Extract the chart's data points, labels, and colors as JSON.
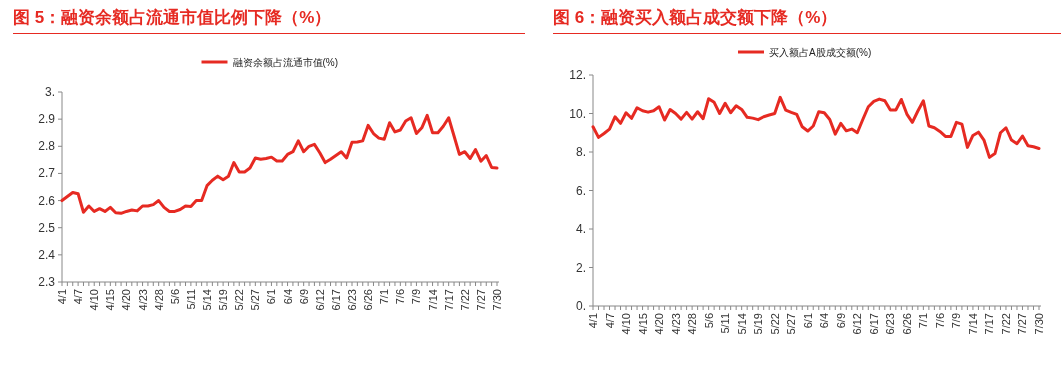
{
  "chart_data": [
    {
      "type": "line",
      "title": "图 5：融资余额占流通市值比例下降（%）",
      "legend": "top",
      "categories": [
        "4/1",
        null,
        null,
        "4/7",
        null,
        null,
        "4/10",
        null,
        null,
        "4/15",
        null,
        null,
        "4/20",
        null,
        null,
        "4/23",
        null,
        null,
        "4/28",
        null,
        null,
        "5/6",
        null,
        null,
        "5/11",
        null,
        null,
        "5/14",
        null,
        null,
        "5/19",
        null,
        null,
        "5/22",
        null,
        null,
        "5/27",
        null,
        null,
        "6/1",
        null,
        null,
        "6/4",
        null,
        null,
        "6/9",
        null,
        null,
        "6/12",
        null,
        null,
        "6/17",
        null,
        null,
        "6/23",
        null,
        null,
        "6/26",
        null,
        null,
        "7/1",
        null,
        null,
        "7/6",
        null,
        null,
        "7/9",
        null,
        null,
        "7/14",
        null,
        null,
        "7/17",
        null,
        null,
        "7/22",
        null,
        null,
        "7/27",
        null,
        null,
        "7/30"
      ],
      "ylim": [
        2.3,
        3.0
      ],
      "yticks": [
        {
          "value": 3.0,
          "label": "3."
        },
        2.9,
        2.8,
        2.7,
        2.6,
        2.5,
        2.4,
        2.3
      ],
      "series": [
        {
          "name": "融资余额占流通市值(%)",
          "color": "#e62a22",
          "values": [
            2.6,
            2.615,
            2.63,
            2.625,
            2.557,
            2.58,
            2.56,
            2.57,
            2.56,
            2.575,
            2.555,
            2.553,
            2.56,
            2.565,
            2.562,
            2.58,
            2.58,
            2.585,
            2.6,
            2.575,
            2.56,
            2.56,
            2.567,
            2.58,
            2.578,
            2.6,
            2.6,
            2.655,
            2.675,
            2.69,
            2.677,
            2.69,
            2.74,
            2.705,
            2.705,
            2.72,
            2.757,
            2.752,
            2.755,
            2.76,
            2.746,
            2.746,
            2.77,
            2.78,
            2.82,
            2.78,
            2.8,
            2.807,
            2.776,
            2.74,
            2.752,
            2.766,
            2.78,
            2.757,
            2.815,
            2.816,
            2.82,
            2.877,
            2.847,
            2.83,
            2.826,
            2.887,
            2.853,
            2.86,
            2.893,
            2.905,
            2.847,
            2.868,
            2.914,
            2.85,
            2.85,
            2.874,
            2.905,
            2.838,
            2.77,
            2.78,
            2.755,
            2.788,
            2.745,
            2.766,
            2.722,
            2.72
          ]
        }
      ]
    },
    {
      "type": "line",
      "title": "图 6：融资买入额占成交额下降（%）",
      "legend": "top",
      "categories": [
        "4/1",
        null,
        null,
        "4/7",
        null,
        null,
        "4/10",
        null,
        null,
        "4/15",
        null,
        null,
        "4/20",
        null,
        null,
        "4/23",
        null,
        null,
        "4/28",
        null,
        null,
        "5/6",
        null,
        null,
        "5/11",
        null,
        null,
        "5/14",
        null,
        null,
        "5/19",
        null,
        null,
        "5/22",
        null,
        null,
        "5/27",
        null,
        null,
        "6/1",
        null,
        null,
        "6/4",
        null,
        null,
        "6/9",
        null,
        null,
        "6/12",
        null,
        null,
        "6/17",
        null,
        null,
        "6/23",
        null,
        null,
        "6/26",
        null,
        null,
        "7/1",
        null,
        null,
        "7/6",
        null,
        null,
        "7/9",
        null,
        null,
        "7/14",
        null,
        null,
        "7/17",
        null,
        null,
        "7/22",
        null,
        null,
        "7/27",
        null,
        null,
        "7/30"
      ],
      "ylim": [
        0,
        12
      ],
      "yticks": [
        {
          "value": 12,
          "label": "12."
        },
        {
          "value": 10,
          "label": "10."
        },
        {
          "value": 8,
          "label": "8."
        },
        {
          "value": 6,
          "label": "6."
        },
        {
          "value": 4,
          "label": "4."
        },
        {
          "value": 2,
          "label": "2."
        },
        {
          "value": 0,
          "label": "0."
        }
      ],
      "series": [
        {
          "name": "买入额占A股成交额(%)",
          "color": "#e62a22",
          "values": [
            9.31,
            8.76,
            8.96,
            9.19,
            9.83,
            9.49,
            10.04,
            9.75,
            10.3,
            10.14,
            10.07,
            10.14,
            10.35,
            9.66,
            10.21,
            10.0,
            9.71,
            10.06,
            9.71,
            10.09,
            9.73,
            10.77,
            10.58,
            10.0,
            10.53,
            10.04,
            10.4,
            10.21,
            9.8,
            9.76,
            9.68,
            9.83,
            9.92,
            10.0,
            10.84,
            10.18,
            10.06,
            9.95,
            9.31,
            9.09,
            9.35,
            10.09,
            10.04,
            9.69,
            8.93,
            9.49,
            9.1,
            9.19,
            9.0,
            9.69,
            10.35,
            10.63,
            10.75,
            10.66,
            10.18,
            10.18,
            10.73,
            9.97,
            9.54,
            10.13,
            10.66,
            9.35,
            9.26,
            9.07,
            8.81,
            8.81,
            9.54,
            9.45,
            8.24,
            8.86,
            9.03,
            8.62,
            7.72,
            7.92,
            9.0,
            9.26,
            8.62,
            8.43,
            8.83,
            8.32,
            8.27,
            8.18
          ]
        }
      ]
    }
  ]
}
